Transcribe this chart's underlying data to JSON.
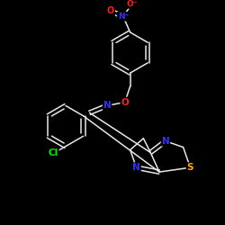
{
  "background_color": "#000000",
  "bond_color": "#e8e8e8",
  "atom_colors": {
    "O": "#ff2020",
    "N": "#3030ff",
    "S": "#ffaa00",
    "Cl": "#00ee00",
    "Ominus": "#ff2020"
  },
  "figsize": [
    2.5,
    2.5
  ],
  "dpi": 100
}
